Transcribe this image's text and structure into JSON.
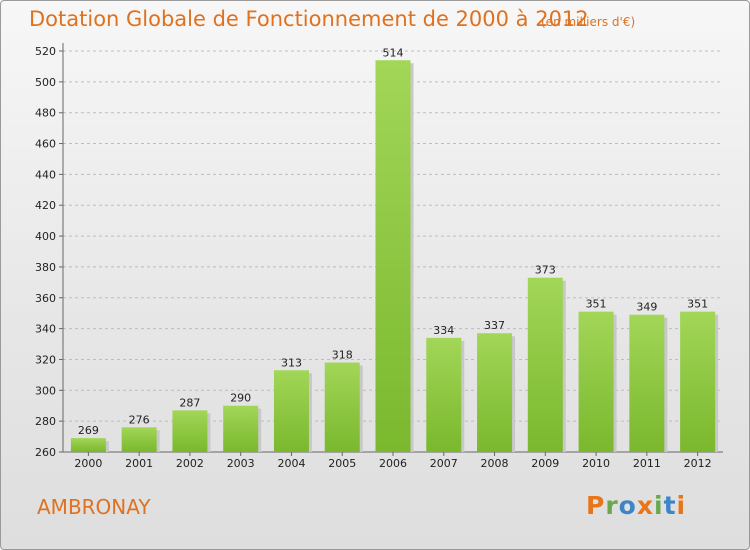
{
  "chart_data": {
    "type": "bar",
    "title": "Dotation Globale de Fonctionnement de 2000 à 2012",
    "subtitle": "(en milliers d'€)",
    "categories": [
      "2000",
      "2001",
      "2002",
      "2003",
      "2004",
      "2005",
      "2006",
      "2007",
      "2008",
      "2009",
      "2010",
      "2011",
      "2012"
    ],
    "values": [
      269,
      276,
      287,
      290,
      313,
      318,
      514,
      334,
      337,
      373,
      351,
      349,
      351
    ],
    "ylim": [
      260,
      520
    ],
    "yticks": [
      260,
      280,
      300,
      320,
      340,
      360,
      380,
      400,
      420,
      440,
      460,
      480,
      500,
      520
    ],
    "grid": "horizontal-dashed",
    "bar_color": "#7ab82e",
    "bar_color_light": "#a2d657"
  },
  "commune": "AMBRONAY",
  "logo": {
    "letters": [
      "P",
      "r",
      "o",
      "x",
      "i",
      "t",
      "i"
    ],
    "colors": [
      "#e8751a",
      "#6aa84f",
      "#3d85c6",
      "#e8751a",
      "#6aa84f",
      "#3d85c6",
      "#e8751a"
    ]
  },
  "colors": {
    "accent": "#e0711f"
  }
}
